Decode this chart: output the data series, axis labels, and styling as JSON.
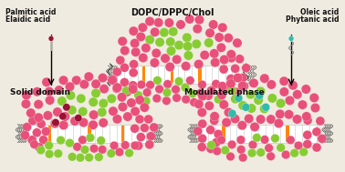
{
  "bg_color": "#f0ebe0",
  "text_color": "#111111",
  "pink_color": "#e8507a",
  "green_color": "#88cc33",
  "teal_color": "#33bbaa",
  "dark_red_color": "#991133",
  "orange_color": "#ff8800",
  "top_center_label": "DOPC/DPPC/Chol",
  "top_left_label1": "Palmitic acid",
  "top_left_label2": "Elaidic acid",
  "top_right_label1": "Oleic acid",
  "top_right_label2": "Phytanic acid",
  "bottom_left_label": "Solid domain",
  "bottom_right_label": "Modulated phase"
}
